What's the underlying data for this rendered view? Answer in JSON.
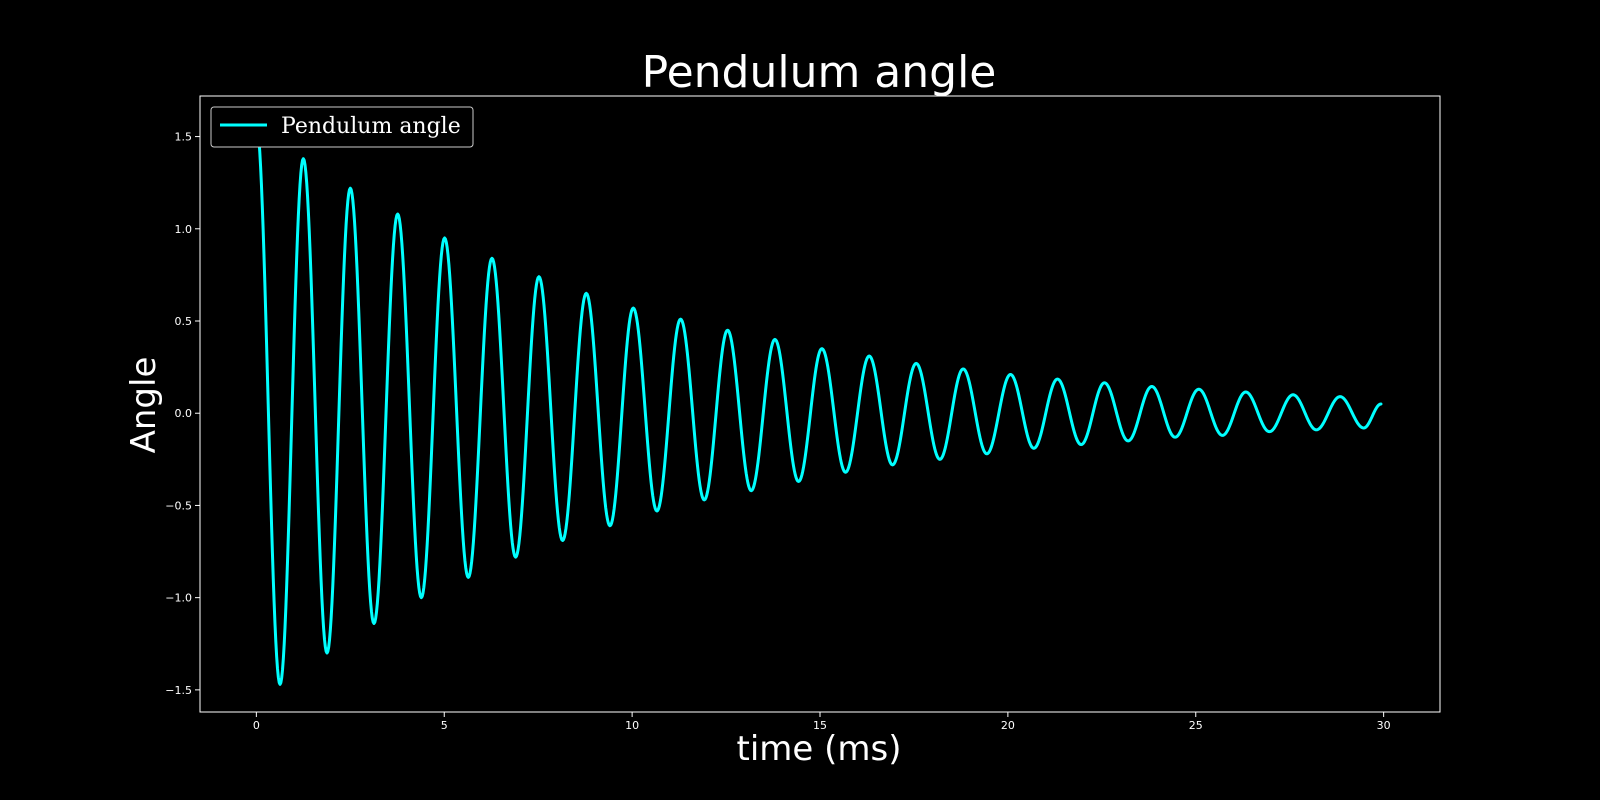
{
  "colors": {
    "background": "#000000",
    "foreground": "#ffffff",
    "line": "#00ffff"
  },
  "chart_data": {
    "type": "line",
    "title": "Pendulum angle",
    "xlabel": "time (ms)",
    "ylabel": "Angle",
    "xlim": [
      -1.5,
      31.5
    ],
    "ylim": [
      -1.62,
      1.72
    ],
    "x_ticks": [
      0,
      5,
      10,
      15,
      20,
      25,
      30
    ],
    "y_ticks": [
      -1.5,
      -1.0,
      -0.5,
      0.0,
      0.5,
      1.0,
      1.5
    ],
    "x_tick_labels": [
      "0",
      "5",
      "10",
      "15",
      "20",
      "25",
      "30"
    ],
    "y_tick_labels": [
      "−1.5",
      "−1.0",
      "−0.5",
      "0.0",
      "0.5",
      "1.0",
      "1.5"
    ],
    "grid": false,
    "legend_position": "upper-left",
    "series": [
      {
        "name": "Pendulum angle",
        "color": "#00ffff",
        "x": [
          0.0,
          0.63,
          1.25,
          1.88,
          2.5,
          3.13,
          3.76,
          4.39,
          5.01,
          5.64,
          6.27,
          6.9,
          7.52,
          8.15,
          8.78,
          9.41,
          10.03,
          10.66,
          11.29,
          11.92,
          12.54,
          13.17,
          13.8,
          14.43,
          15.05,
          15.68,
          16.31,
          16.93,
          17.56,
          18.19,
          18.81,
          19.44,
          20.07,
          20.69,
          21.32,
          21.95,
          22.57,
          23.2,
          23.83,
          24.45,
          25.08,
          25.71,
          26.33,
          26.96,
          27.59,
          28.21,
          28.84,
          29.47,
          29.93
        ],
        "y": [
          1.57,
          -1.47,
          1.38,
          -1.3,
          1.22,
          -1.14,
          1.08,
          -1.0,
          0.95,
          -0.89,
          0.84,
          -0.78,
          0.74,
          -0.69,
          0.65,
          -0.61,
          0.57,
          -0.53,
          0.51,
          -0.47,
          0.45,
          -0.42,
          0.4,
          -0.37,
          0.35,
          -0.32,
          0.31,
          -0.28,
          0.27,
          -0.25,
          0.24,
          -0.22,
          0.21,
          -0.19,
          0.185,
          -0.17,
          0.165,
          -0.15,
          0.145,
          -0.13,
          0.13,
          -0.12,
          0.115,
          -0.1,
          0.1,
          -0.09,
          0.09,
          -0.08,
          0.05
        ]
      }
    ]
  }
}
